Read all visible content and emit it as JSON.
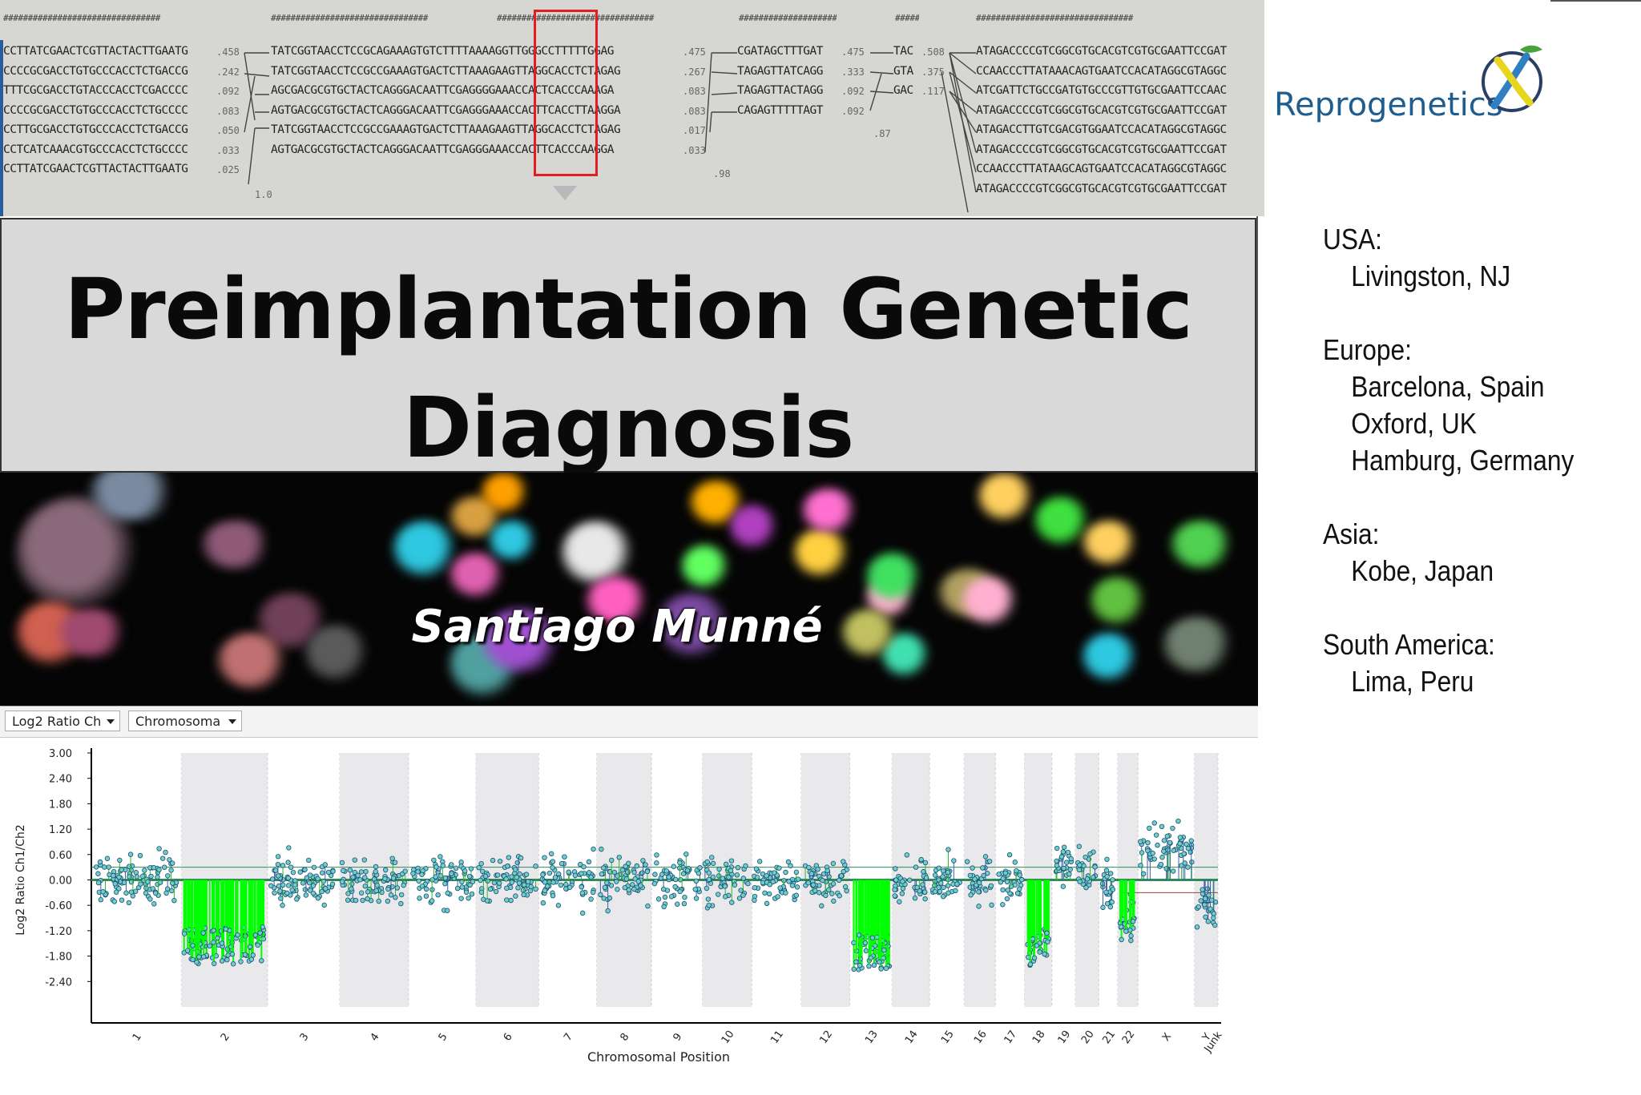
{
  "sequence_panel": {
    "block_header": "################################",
    "left_block": [
      "CCTTATCGAACTCGTTACTACTTGAATG",
      "CCCCGCGACCTGTGCCCACCTCTGACCG",
      "TTTCGCGACCTGTACCCACCTCGACCCC",
      "CCCCGCGACCTGTGCCCACCTCTGCCCC",
      "CCTTGCGACCTGTGCCCACCTCTGACCG",
      "CCTCATCAAACGTGCCCACCTCTGCCCC",
      "CCTTATCGAACTCGTTACTACTTGAATG"
    ],
    "left_scores": [
      ".458",
      ".242",
      ".092",
      ".083",
      ".050",
      ".033",
      ".025"
    ],
    "mid_block": [
      "TATCGGTAACCTCCGCAGAAAGTGTCTTTTAAAAGGTTGGGCCTTTTTGGAG",
      "TATCGGTAACCTCCGCCGAAAGTGACTCTTAAAGAAGTTAGGCACCTCTAGAG",
      "AGCGACGCGTGCTACTCAGGGACAATTCGAGGGGAAACCACTCACCCAAAGA",
      "AGTGACGCGTGCTACTCAGGGACAATTCGAGGGAAACCACTTCACCTTAAGGA",
      "TATCGGTAACCTCCGCCGAAAGTGACTCTTAAAGAAGTTAGGCACCTCTAGAG",
      "AGTGACGCGTGCTACTCAGGGACAATTCGAGGGAAACCACTTCACCCAAGGA"
    ],
    "mid_scores": [
      ".475",
      ".267",
      ".083",
      ".083",
      ".017",
      ".033"
    ],
    "right1_block": [
      "CGATAGCTTTGAT",
      "TAGAGTTATCAGG",
      "TAGAGTTACTAGG",
      "CAGAGTTTTTAGT"
    ],
    "right1_scores": [
      ".475",
      ".333",
      ".092",
      ".092"
    ],
    "right2_block": [
      "TAC",
      "GTA",
      "GAC"
    ],
    "right2_scores": [
      ".508",
      ".375",
      ".117"
    ],
    "far_block": [
      "ATAGACCCCGTCGGCGTGCACGTCGTGCGAATTCCGAT",
      "CCAACCCTTATAAACAGTGAATCCACATAGGCGTAGGC",
      "ATCGATTCTGCCGATGTGCCCGTTGTGCGAATTCCAAC",
      "ATAGACCCCGTCGGCGTGCACGTCGTGCGAATTCCGAT",
      "ATAGACCTTGTCGACGTGGAATCCACATAGGCGTAGGC",
      "ATAGACCCCGTCGGCGTGCACGTCGTGCGAATTCCGAT",
      "CCAACCCTTATAAGCAGTGAATCCACATAGGCGTAGGC",
      "ATAGACCCCGTCGGCGTGCACGTCGTGCGAATTCCGAT"
    ],
    "tree_labels": [
      "1.0",
      ".98",
      ".87"
    ]
  },
  "logo": {
    "name": "Reprogenetics",
    "colors": {
      "word": "#1e5d8f",
      "ring": "#2b3f66",
      "helix_blue": "#2f7fc1",
      "helix_yellow": "#e8d51e",
      "leaf_green": "#4aa33a"
    }
  },
  "locations": [
    {
      "region": "USA:",
      "cities": [
        "Livingston, NJ"
      ]
    },
    {
      "region": "Europe:",
      "cities": [
        "Barcelona, Spain",
        "Oxford, UK",
        "Hamburg, Germany"
      ]
    },
    {
      "region": "Asia:",
      "cities": [
        "Kobe, Japan"
      ]
    },
    {
      "region": "South America:",
      "cities": [
        "Lima, Peru"
      ]
    }
  ],
  "title": {
    "line1": "Preimplantation Genetic",
    "line2": "Diagnosis"
  },
  "author": "Santiago Munné",
  "cgh_toolbar": {
    "dropdown1": "Log2 Ratio Ch",
    "dropdown2": "Chromosoma"
  },
  "chart_data": {
    "type": "scatter",
    "ylabel": "Log2 Ratio Ch1/Ch2",
    "xlabel": "Chromosomal Position",
    "yticks": [
      "3.00",
      "2.40",
      "1.80",
      "1.20",
      "0.60",
      "0.00",
      "-0.60",
      "-1.20",
      "-1.80",
      "-2.40"
    ],
    "ylim": [
      -3.0,
      3.0
    ],
    "categories": [
      "1",
      "2",
      "3",
      "4",
      "5",
      "6",
      "7",
      "8",
      "9",
      "10",
      "11",
      "12",
      "13",
      "14",
      "15",
      "16",
      "17",
      "18",
      "19",
      "20",
      "21",
      "22",
      "X",
      "Y\nJunk"
    ],
    "segment_means": [
      0.05,
      -1.55,
      0.0,
      -0.05,
      0.0,
      0.0,
      0.0,
      0.0,
      0.0,
      0.0,
      0.0,
      0.0,
      -1.7,
      0.0,
      0.0,
      0.0,
      0.0,
      -1.6,
      0.3,
      0.2,
      -0.2,
      -0.9,
      0.7,
      -0.7
    ],
    "series": [
      {
        "name": "",
        "color": "#2db82d"
      },
      {
        "name": "",
        "color": "#3d5fa8"
      }
    ],
    "grid": false,
    "colors": {
      "points": "#6ecfcf",
      "loss_bars": "#00ff00",
      "baseline": "#2e8b57",
      "shade": "#e9e9ec"
    }
  }
}
